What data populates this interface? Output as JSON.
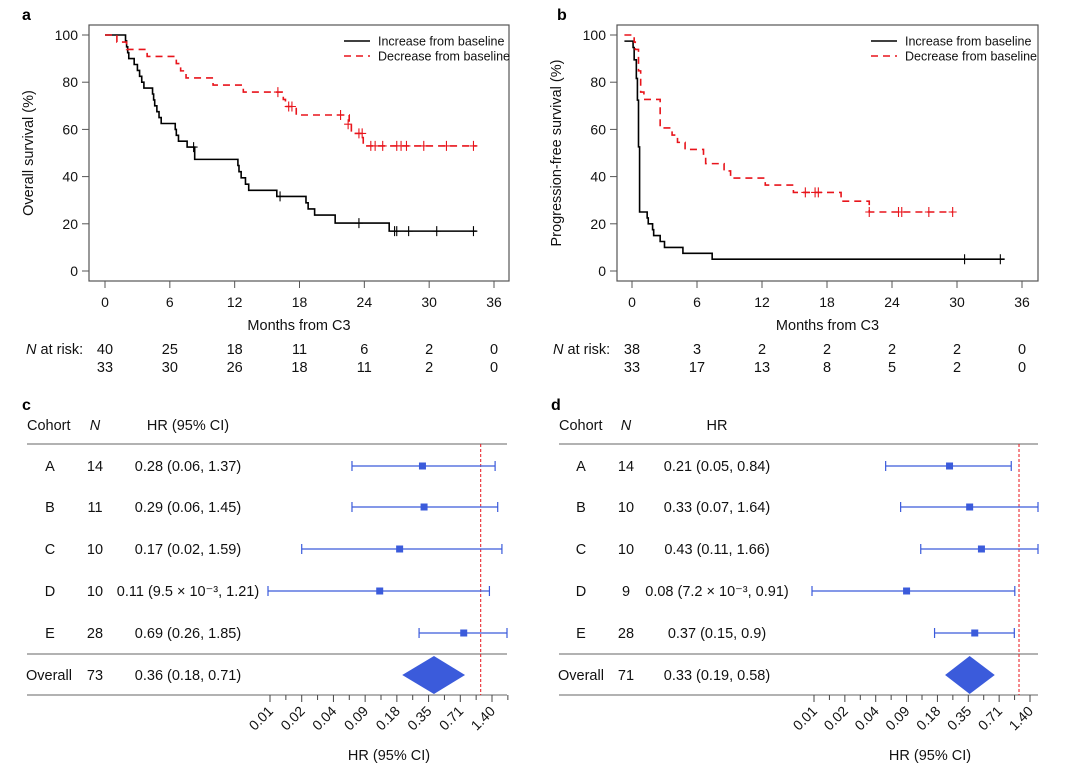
{
  "colors": {
    "increase": "#000000",
    "decrease": "#e8141b",
    "forest": "#3b5bdb",
    "reference": "#e8141b",
    "frame": "#555555"
  },
  "chart_data": [
    {
      "panel": "a",
      "type": "line",
      "subtype": "kaplan-meier",
      "xlabel": "Months from C3",
      "ylabel": "Overall survival (%)",
      "xlim": [
        0,
        36
      ],
      "ylim": [
        0,
        100
      ],
      "xticks": [
        "0",
        "6",
        "12",
        "18",
        "24",
        "30",
        "36"
      ],
      "yticks": [
        "0",
        "20",
        "40",
        "60",
        "80",
        "100"
      ],
      "grid": false,
      "legend": {
        "position": "top-right",
        "entries": [
          "Increase from baseline",
          "Decrease from baseline"
        ]
      },
      "series": [
        {
          "name": "Increase from baseline",
          "style": "solid",
          "steps": [
            [
              0,
              100
            ],
            [
              1.9,
              97.5
            ],
            [
              2.0,
              95
            ],
            [
              2.1,
              92.5
            ],
            [
              2.2,
              90
            ],
            [
              2.7,
              87.5
            ],
            [
              3.0,
              85
            ],
            [
              3.2,
              82.5
            ],
            [
              3.4,
              80
            ],
            [
              3.6,
              77.5
            ],
            [
              4.4,
              75
            ],
            [
              4.5,
              72.5
            ],
            [
              4.6,
              70
            ],
            [
              4.8,
              67.5
            ],
            [
              5.0,
              65
            ],
            [
              5.2,
              62.5
            ],
            [
              6.5,
              60
            ],
            [
              6.6,
              57.5
            ],
            [
              6.8,
              55
            ],
            [
              7.6,
              52.5
            ],
            [
              8.3,
              47.3
            ],
            [
              12.3,
              44.7
            ],
            [
              12.4,
              42.1
            ],
            [
              12.6,
              39.5
            ],
            [
              13.0,
              36.8
            ],
            [
              13.3,
              34.2
            ],
            [
              15.9,
              31.6
            ],
            [
              18.6,
              28.9
            ],
            [
              18.8,
              26.3
            ],
            [
              19.4,
              23.7
            ],
            [
              21.3,
              20.3
            ],
            [
              26.3,
              16.9
            ],
            [
              34.4,
              16.9
            ]
          ],
          "censored": [
            [
              8.2,
              52.5
            ],
            [
              16.2,
              31.6
            ],
            [
              23.5,
              20.3
            ],
            [
              26.8,
              16.9
            ],
            [
              27.0,
              16.9
            ],
            [
              28.1,
              16.9
            ],
            [
              30.7,
              16.9
            ],
            [
              34.1,
              16.9
            ]
          ]
        },
        {
          "name": "Decrease from baseline",
          "style": "dashed",
          "steps": [
            [
              0,
              100
            ],
            [
              1.1,
              97
            ],
            [
              2.0,
              93.9
            ],
            [
              3.9,
              90.9
            ],
            [
              6.6,
              87.9
            ],
            [
              7.0,
              84.8
            ],
            [
              7.5,
              81.8
            ],
            [
              10,
              78.8
            ],
            [
              12.8,
              75.8
            ],
            [
              16.5,
              72.7
            ],
            [
              16.7,
              69.7
            ],
            [
              17.7,
              66.1
            ],
            [
              22.6,
              62.2
            ],
            [
              22.8,
              58.3
            ],
            [
              23.9,
              53
            ],
            [
              34.4,
              53
            ]
          ],
          "censored": [
            [
              16,
              75.8
            ],
            [
              17,
              69.7
            ],
            [
              17.3,
              69.7
            ],
            [
              21.8,
              66.1
            ],
            [
              22.5,
              62.2
            ],
            [
              23.5,
              58.3
            ],
            [
              23.8,
              58.3
            ],
            [
              24.6,
              53
            ],
            [
              25,
              53
            ],
            [
              25.7,
              53
            ],
            [
              27,
              53
            ],
            [
              27.4,
              53
            ],
            [
              27.9,
              53
            ],
            [
              29.5,
              53
            ],
            [
              31.6,
              53
            ],
            [
              34.1,
              53
            ]
          ]
        }
      ],
      "risk_table": {
        "label_italic": "N",
        "label": " at risk:",
        "rows": [
          [
            "40",
            "25",
            "18",
            "11",
            "6",
            "2",
            "0"
          ],
          [
            "33",
            "30",
            "26",
            "18",
            "11",
            "2",
            "0"
          ]
        ]
      }
    },
    {
      "panel": "b",
      "type": "line",
      "subtype": "kaplan-meier",
      "xlabel": "Months from C3",
      "ylabel": "Progression-free survival (%)",
      "xlim": [
        0,
        36
      ],
      "ylim": [
        0,
        100
      ],
      "xticks": [
        "0",
        "6",
        "12",
        "18",
        "24",
        "30",
        "36"
      ],
      "yticks": [
        "0",
        "20",
        "40",
        "60",
        "80",
        "100"
      ],
      "grid": false,
      "legend": {
        "position": "top-right",
        "entries": [
          "Increase from baseline",
          "Decrease from baseline"
        ]
      },
      "series": [
        {
          "name": "Increase from baseline",
          "style": "solid",
          "steps": [
            [
              -0.7,
              97.4
            ],
            [
              0.1,
              94.7
            ],
            [
              0.2,
              89.5
            ],
            [
              0.4,
              81.6
            ],
            [
              0.5,
              72.4
            ],
            [
              0.6,
              52.6
            ],
            [
              0.7,
              25
            ],
            [
              1.4,
              22.5
            ],
            [
              1.5,
              20
            ],
            [
              1.9,
              17.5
            ],
            [
              2.0,
              15
            ],
            [
              2.6,
              12.5
            ],
            [
              3.0,
              10
            ],
            [
              4.7,
              7.5
            ],
            [
              7.4,
              5
            ],
            [
              34.4,
              5
            ]
          ],
          "censored": [
            [
              30.7,
              5
            ],
            [
              34.0,
              5
            ]
          ]
        },
        {
          "name": "Decrease from baseline",
          "style": "dashed",
          "steps": [
            [
              -0.7,
              100
            ],
            [
              0.2,
              97
            ],
            [
              0.3,
              93.9
            ],
            [
              0.6,
              84.8
            ],
            [
              0.8,
              75.8
            ],
            [
              1.1,
              72.7
            ],
            [
              2.6,
              60.6
            ],
            [
              3.7,
              57.6
            ],
            [
              4.2,
              54.5
            ],
            [
              4.9,
              51.5
            ],
            [
              6.6,
              48.5
            ],
            [
              6.8,
              45.5
            ],
            [
              8.5,
              42.4
            ],
            [
              9.1,
              39.4
            ],
            [
              12.3,
              36.4
            ],
            [
              14.9,
              33.3
            ],
            [
              19.3,
              29.6
            ],
            [
              21.9,
              25
            ],
            [
              29.6,
              25
            ]
          ],
          "censored": [
            [
              16,
              33.3
            ],
            [
              16.9,
              33.3
            ],
            [
              17.2,
              33.3
            ],
            [
              21.9,
              25
            ],
            [
              24.6,
              25
            ],
            [
              24.9,
              25
            ],
            [
              27.4,
              25
            ],
            [
              29.6,
              25
            ]
          ]
        }
      ],
      "risk_table": {
        "label_italic": "N",
        "label": " at risk:",
        "rows": [
          [
            "38",
            "3",
            "2",
            "2",
            "2",
            "2",
            "0"
          ],
          [
            "33",
            "17",
            "13",
            "8",
            "5",
            "2",
            "0"
          ]
        ]
      }
    },
    {
      "panel": "c",
      "type": "forest",
      "scale": "log",
      "reference": 1,
      "headers": {
        "cohort": "Cohort",
        "n": "N",
        "hr": "HR (95% CI)"
      },
      "rows": [
        {
          "cohort": "A",
          "n": "14",
          "hr": 0.28,
          "lo": 0.06,
          "hi": 1.37,
          "label": "0.28 (0.06, 1.37)"
        },
        {
          "cohort": "B",
          "n": "11",
          "hr": 0.29,
          "lo": 0.06,
          "hi": 1.45,
          "label": "0.29 (0.06, 1.45)"
        },
        {
          "cohort": "C",
          "n": "10",
          "hr": 0.17,
          "lo": 0.02,
          "hi": 1.59,
          "label": "0.17 (0.02, 1.59)"
        },
        {
          "cohort": "D",
          "n": "10",
          "hr": 0.11,
          "lo": 0.0095,
          "hi": 1.21,
          "label": "0.11 (9.5 × 10⁻³, 1.21)"
        },
        {
          "cohort": "E",
          "n": "28",
          "hr": 0.69,
          "lo": 0.26,
          "hi": 1.85,
          "label": "0.69 (0.26, 1.85)"
        }
      ],
      "overall": {
        "cohort": "Overall",
        "n": "73",
        "hr": 0.36,
        "lo": 0.18,
        "hi": 0.71,
        "label": "0.36 (0.18, 0.71)"
      },
      "xticks": [
        "0.01",
        "0.02",
        "0.04",
        "0.09",
        "0.18",
        "0.35",
        "0.71",
        "1.40"
      ],
      "xlabel": "HR (95% CI)"
    },
    {
      "panel": "d",
      "type": "forest",
      "scale": "log",
      "reference": 1,
      "headers": {
        "cohort": "Cohort",
        "n": "N",
        "hr": "HR"
      },
      "rows": [
        {
          "cohort": "A",
          "n": "14",
          "hr": 0.21,
          "lo": 0.05,
          "hi": 0.84,
          "label": "0.21 (0.05, 0.84)"
        },
        {
          "cohort": "B",
          "n": "10",
          "hr": 0.33,
          "lo": 0.07,
          "hi": 1.64,
          "label": "0.33 (0.07, 1.64)"
        },
        {
          "cohort": "C",
          "n": "10",
          "hr": 0.43,
          "lo": 0.11,
          "hi": 1.66,
          "label": "0.43 (0.11, 1.66)"
        },
        {
          "cohort": "D",
          "n": "9",
          "hr": 0.08,
          "lo": 0.0072,
          "hi": 0.91,
          "label": "0.08 (7.2 × 10⁻³, 0.91)"
        },
        {
          "cohort": "E",
          "n": "28",
          "hr": 0.37,
          "lo": 0.15,
          "hi": 0.9,
          "label": "0.37 (0.15, 0.9)"
        }
      ],
      "overall": {
        "cohort": "Overall",
        "n": "71",
        "hr": 0.33,
        "lo": 0.19,
        "hi": 0.58,
        "label": "0.33 (0.19, 0.58)"
      },
      "xticks": [
        "0.01",
        "0.02",
        "0.04",
        "0.09",
        "0.18",
        "0.35",
        "0.71",
        "1.40"
      ],
      "xlabel": "HR (95% CI)"
    }
  ]
}
